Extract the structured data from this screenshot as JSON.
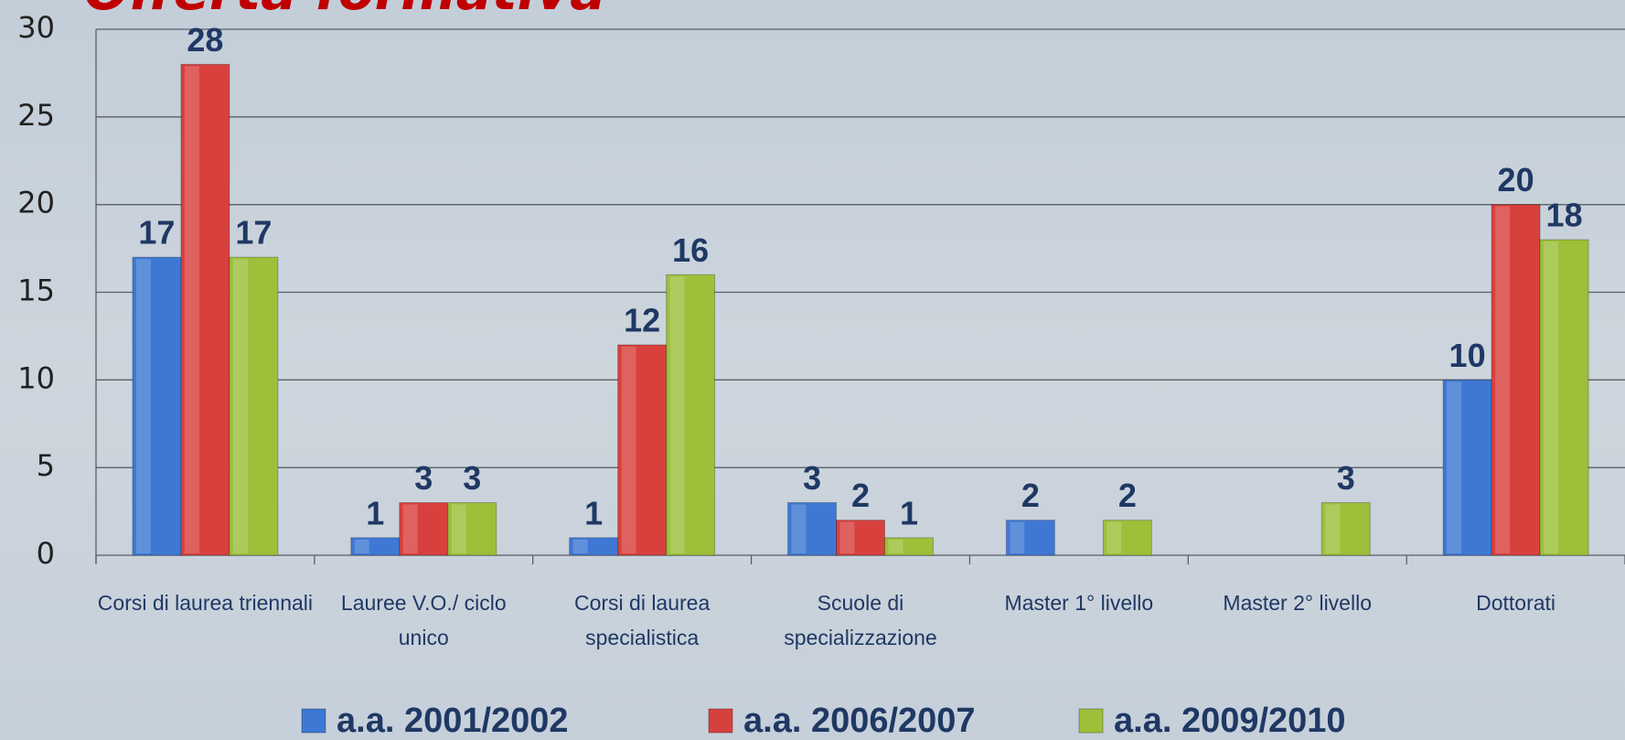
{
  "chart_data": {
    "type": "bar",
    "title": "Offerta formativa",
    "categories": [
      "Corsi di laurea triennali",
      "Lauree V.O./ ciclo unico",
      "Corsi di laurea specialistica",
      "Scuole di specializzazione",
      "Master 1° livello",
      "Master 2° livello",
      "Dottorati"
    ],
    "series": [
      {
        "name": "a.a. 2001/2002",
        "color": "#3f78d4",
        "values": [
          17,
          1,
          1,
          3,
          2,
          null,
          10
        ]
      },
      {
        "name": "a.a. 2006/2007",
        "color": "#d8403d",
        "values": [
          28,
          3,
          12,
          2,
          null,
          null,
          20
        ]
      },
      {
        "name": "a.a. 2009/2010",
        "color": "#9cc03a",
        "values": [
          17,
          3,
          16,
          1,
          2,
          3,
          18
        ]
      }
    ],
    "ylim": [
      0,
      30
    ],
    "yticks": [
      0,
      5,
      10,
      15,
      20,
      25,
      30
    ],
    "grid": true,
    "legend": "bottom"
  }
}
